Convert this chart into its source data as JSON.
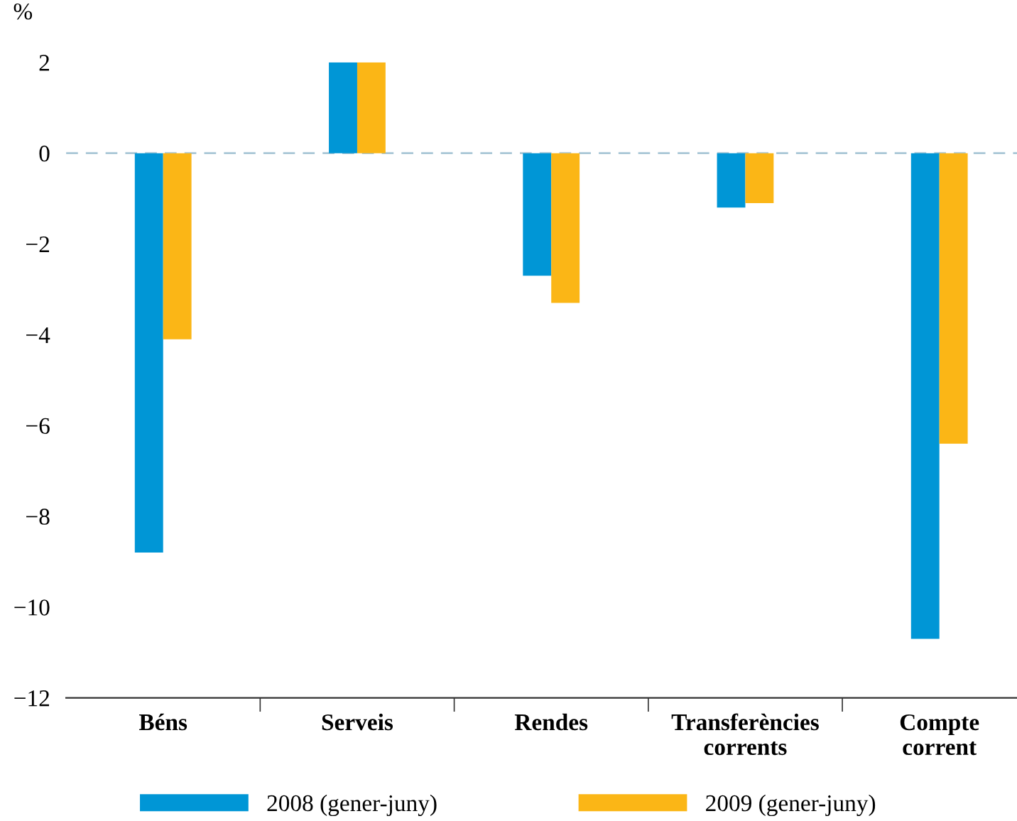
{
  "chart_data": {
    "type": "bar",
    "ylabel": "%",
    "categories": [
      "Béns",
      "Serveis",
      "Rendes",
      "Transferències\ncorrents",
      "Compte\ncorrent"
    ],
    "series": [
      {
        "name": "2008 (gener-juny)",
        "color": "#0096d6",
        "values": [
          -8.8,
          2.0,
          -2.7,
          -1.2,
          -10.7
        ]
      },
      {
        "name": "2009 (gener-juny)",
        "color": "#fbb616",
        "values": [
          -4.1,
          2.0,
          -3.3,
          -1.1,
          -6.4
        ]
      }
    ],
    "ylim": [
      -12,
      2
    ],
    "yticks": [
      {
        "value": -12,
        "label": "−12"
      },
      {
        "value": -10,
        "label": "−10"
      },
      {
        "value": -8,
        "label": "−8"
      },
      {
        "value": -6,
        "label": "−6"
      },
      {
        "value": -4,
        "label": "−4"
      },
      {
        "value": -2,
        "label": "−2"
      },
      0,
      2
    ],
    "ref_lines": [
      {
        "axis": "y",
        "value": 0,
        "color": "#a9c7d6",
        "line_style": "dashed"
      }
    ],
    "grid": false,
    "legend": "bottom"
  }
}
